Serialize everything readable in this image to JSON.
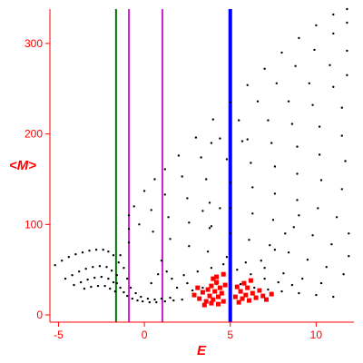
{
  "chart_data": {
    "type": "scatter",
    "title": "",
    "xlabel": "E",
    "ylabel": "<M>",
    "xlim": [
      -5.5,
      12.2
    ],
    "ylim": [
      -8,
      338
    ],
    "x_ticks": [
      -5,
      0,
      5,
      10
    ],
    "x_tick_labels": [
      "-5",
      "0",
      "5",
      "10"
    ],
    "y_ticks": [
      0,
      100,
      200,
      300
    ],
    "y_tick_labels": [
      "0",
      "100",
      "200",
      "300"
    ],
    "grid": false,
    "legend": "none",
    "colors": {
      "axis": "#ff0000",
      "points": "#000000",
      "highlight": "#ff0000",
      "line_green": "#007700",
      "line_magenta": "#cc22cc",
      "line_blue": "#0000ff"
    },
    "vertical_lines": [
      {
        "x": -1.65,
        "color": "#007700",
        "width": 2
      },
      {
        "x": -0.9,
        "color": "#cc22cc",
        "width": 2
      },
      {
        "x": 1.05,
        "color": "#cc22cc",
        "width": 2
      },
      {
        "x": 5.0,
        "color": "#0000ff",
        "width": 4
      }
    ],
    "series": [
      {
        "values": [
          {
            "x": -5.2,
            "y": 55
          },
          {
            "x": -4.8,
            "y": 60
          },
          {
            "x": -4.4,
            "y": 64
          },
          {
            "x": -4.0,
            "y": 67
          },
          {
            "x": -3.6,
            "y": 69
          },
          {
            "x": -3.2,
            "y": 71
          },
          {
            "x": -2.8,
            "y": 72
          },
          {
            "x": -2.4,
            "y": 72
          },
          {
            "x": -2.1,
            "y": 70
          },
          {
            "x": -1.8,
            "y": 66
          },
          {
            "x": -4.6,
            "y": 40
          },
          {
            "x": -4.2,
            "y": 44
          },
          {
            "x": -3.8,
            "y": 48
          },
          {
            "x": -3.4,
            "y": 51
          },
          {
            "x": -3.0,
            "y": 53
          },
          {
            "x": -2.6,
            "y": 54
          },
          {
            "x": -2.2,
            "y": 53
          },
          {
            "x": -1.9,
            "y": 49
          },
          {
            "x": -4.1,
            "y": 33
          },
          {
            "x": -3.7,
            "y": 36
          },
          {
            "x": -3.3,
            "y": 39
          },
          {
            "x": -2.9,
            "y": 41
          },
          {
            "x": -2.5,
            "y": 42
          },
          {
            "x": -2.1,
            "y": 40
          },
          {
            "x": -1.8,
            "y": 36
          },
          {
            "x": -3.5,
            "y": 29
          },
          {
            "x": -3.1,
            "y": 31
          },
          {
            "x": -2.7,
            "y": 32
          },
          {
            "x": -2.3,
            "y": 32
          },
          {
            "x": -2.0,
            "y": 29
          },
          {
            "x": -1.7,
            "y": 26
          },
          {
            "x": -1.6,
            "y": 35
          },
          {
            "x": -1.4,
            "y": 30
          },
          {
            "x": -1.2,
            "y": 25
          },
          {
            "x": -1.0,
            "y": 21
          },
          {
            "x": -0.7,
            "y": 18
          },
          {
            "x": -0.4,
            "y": 16
          },
          {
            "x": -0.1,
            "y": 15
          },
          {
            "x": 0.3,
            "y": 14
          },
          {
            "x": 0.7,
            "y": 14
          },
          {
            "x": 1.2,
            "y": 15
          },
          {
            "x": 1.7,
            "y": 16
          },
          {
            "x": 2.2,
            "y": 17
          },
          {
            "x": -1.6,
            "y": 44
          },
          {
            "x": -1.5,
            "y": 58
          },
          {
            "x": -1.4,
            "y": 66
          },
          {
            "x": -1.2,
            "y": 52
          },
          {
            "x": -1.0,
            "y": 40
          },
          {
            "x": -0.8,
            "y": 30
          },
          {
            "x": -0.5,
            "y": 24
          },
          {
            "x": -0.2,
            "y": 20
          },
          {
            "x": 0.2,
            "y": 18
          },
          {
            "x": 0.6,
            "y": 17
          },
          {
            "x": 1.0,
            "y": 18
          },
          {
            "x": 1.5,
            "y": 19
          },
          {
            "x": -0.9,
            "y": 80
          },
          {
            "x": -0.9,
            "y": 95
          },
          {
            "x": -0.9,
            "y": 110
          },
          {
            "x": -0.6,
            "y": 120
          },
          {
            "x": 0.0,
            "y": 137
          },
          {
            "x": 0.6,
            "y": 150
          },
          {
            "x": 1.2,
            "y": 161
          },
          {
            "x": 2.0,
            "y": 176
          },
          {
            "x": 3.0,
            "y": 196
          },
          {
            "x": 4.0,
            "y": 216
          },
          {
            "x": 5.0,
            "y": 235
          },
          {
            "x": 6.0,
            "y": 254
          },
          {
            "x": 7.0,
            "y": 272
          },
          {
            "x": 8.0,
            "y": 290
          },
          {
            "x": 9.0,
            "y": 306
          },
          {
            "x": 10.0,
            "y": 320
          },
          {
            "x": 11.0,
            "y": 332
          },
          {
            "x": 11.8,
            "y": 338
          },
          {
            "x": -0.3,
            "y": 100
          },
          {
            "x": 0.4,
            "y": 116
          },
          {
            "x": 1.2,
            "y": 133
          },
          {
            "x": 2.2,
            "y": 153
          },
          {
            "x": 3.3,
            "y": 174
          },
          {
            "x": 4.4,
            "y": 195
          },
          {
            "x": 5.5,
            "y": 215
          },
          {
            "x": 6.6,
            "y": 236
          },
          {
            "x": 7.7,
            "y": 256
          },
          {
            "x": 8.8,
            "y": 275
          },
          {
            "x": 9.9,
            "y": 293
          },
          {
            "x": 11.0,
            "y": 311
          },
          {
            "x": 11.8,
            "y": 323
          },
          {
            "x": 0.5,
            "y": 92
          },
          {
            "x": 1.4,
            "y": 108
          },
          {
            "x": 2.5,
            "y": 129
          },
          {
            "x": 3.6,
            "y": 150
          },
          {
            "x": 4.8,
            "y": 172
          },
          {
            "x": 6.0,
            "y": 194
          },
          {
            "x": 7.2,
            "y": 215
          },
          {
            "x": 8.4,
            "y": 236
          },
          {
            "x": 9.6,
            "y": 256
          },
          {
            "x": 10.8,
            "y": 276
          },
          {
            "x": 11.8,
            "y": 292
          },
          {
            "x": 1.5,
            "y": 84
          },
          {
            "x": 2.6,
            "y": 102
          },
          {
            "x": 3.8,
            "y": 124
          },
          {
            "x": 5.0,
            "y": 146
          },
          {
            "x": 6.2,
            "y": 168
          },
          {
            "x": 7.4,
            "y": 190
          },
          {
            "x": 8.6,
            "y": 211
          },
          {
            "x": 9.8,
            "y": 232
          },
          {
            "x": 11.0,
            "y": 252
          },
          {
            "x": 11.8,
            "y": 265
          },
          {
            "x": 2.6,
            "y": 76
          },
          {
            "x": 3.8,
            "y": 96
          },
          {
            "x": 5.0,
            "y": 118
          },
          {
            "x": 6.3,
            "y": 141
          },
          {
            "x": 7.6,
            "y": 164
          },
          {
            "x": 8.9,
            "y": 186
          },
          {
            "x": 10.2,
            "y": 208
          },
          {
            "x": 11.5,
            "y": 229
          },
          {
            "x": 3.7,
            "y": 70
          },
          {
            "x": 5.0,
            "y": 90
          },
          {
            "x": 6.3,
            "y": 112
          },
          {
            "x": 7.6,
            "y": 134
          },
          {
            "x": 8.9,
            "y": 156
          },
          {
            "x": 10.2,
            "y": 177
          },
          {
            "x": 11.5,
            "y": 198
          },
          {
            "x": 4.8,
            "y": 64
          },
          {
            "x": 6.1,
            "y": 83
          },
          {
            "x": 7.5,
            "y": 105
          },
          {
            "x": 8.9,
            "y": 127
          },
          {
            "x": 10.3,
            "y": 149
          },
          {
            "x": 11.7,
            "y": 170
          },
          {
            "x": 5.9,
            "y": 58
          },
          {
            "x": 7.3,
            "y": 77
          },
          {
            "x": 8.7,
            "y": 97
          },
          {
            "x": 10.1,
            "y": 118
          },
          {
            "x": 11.5,
            "y": 139
          },
          {
            "x": 7.0,
            "y": 52
          },
          {
            "x": 8.4,
            "y": 69
          },
          {
            "x": 9.8,
            "y": 88
          },
          {
            "x": 11.2,
            "y": 108
          },
          {
            "x": 8.1,
            "y": 46
          },
          {
            "x": 9.5,
            "y": 61
          },
          {
            "x": 10.9,
            "y": 78
          },
          {
            "x": 11.9,
            "y": 90
          },
          {
            "x": 9.2,
            "y": 40
          },
          {
            "x": 10.6,
            "y": 53
          },
          {
            "x": 11.9,
            "y": 65
          },
          {
            "x": 10.3,
            "y": 35
          },
          {
            "x": 11.6,
            "y": 45
          },
          {
            "x": 1.6,
            "y": 40
          },
          {
            "x": 2.3,
            "y": 44
          },
          {
            "x": 3.1,
            "y": 48
          },
          {
            "x": 3.9,
            "y": 52
          },
          {
            "x": 4.6,
            "y": 56
          },
          {
            "x": 5.4,
            "y": 50
          },
          {
            "x": 6.2,
            "y": 45
          },
          {
            "x": 7.0,
            "y": 40
          },
          {
            "x": 7.8,
            "y": 36
          },
          {
            "x": 8.6,
            "y": 33
          },
          {
            "x": 2.8,
            "y": 27
          },
          {
            "x": 3.4,
            "y": 30
          },
          {
            "x": 4.2,
            "y": 34
          },
          {
            "x": 5.6,
            "y": 34
          },
          {
            "x": 6.4,
            "y": 30
          },
          {
            "x": 7.2,
            "y": 28
          },
          {
            "x": 8.0,
            "y": 26
          },
          {
            "x": 9.0,
            "y": 24
          },
          {
            "x": 10.0,
            "y": 22
          },
          {
            "x": 11.0,
            "y": 20
          },
          {
            "x": 1.0,
            "y": 60
          },
          {
            "x": 1.3,
            "y": 48
          },
          {
            "x": 0.8,
            "y": 45
          },
          {
            "x": 0.4,
            "y": 35
          },
          {
            "x": 1.9,
            "y": 30
          },
          {
            "x": 2.5,
            "y": 35
          },
          {
            "x": 6.8,
            "y": 60
          },
          {
            "x": 7.6,
            "y": 72
          },
          {
            "x": 8.2,
            "y": 90
          },
          {
            "x": 9.0,
            "y": 110
          },
          {
            "x": 3.4,
            "y": 115
          },
          {
            "x": 3.9,
            "y": 98
          },
          {
            "x": 4.4,
            "y": 118
          },
          {
            "x": 5.7,
            "y": 192
          },
          {
            "x": 3.9,
            "y": 190
          }
        ]
      },
      {
        "values": [
          {
            "x": 2.9,
            "y": 22
          },
          {
            "x": 3.2,
            "y": 18
          },
          {
            "x": 3.4,
            "y": 25
          },
          {
            "x": 3.6,
            "y": 15
          },
          {
            "x": 3.7,
            "y": 28
          },
          {
            "x": 3.8,
            "y": 21
          },
          {
            "x": 3.9,
            "y": 32
          },
          {
            "x": 4.0,
            "y": 17
          },
          {
            "x": 4.1,
            "y": 26
          },
          {
            "x": 4.2,
            "y": 36
          },
          {
            "x": 4.3,
            "y": 20
          },
          {
            "x": 4.4,
            "y": 30
          },
          {
            "x": 4.5,
            "y": 24
          },
          {
            "x": 4.6,
            "y": 15
          },
          {
            "x": 4.7,
            "y": 33
          },
          {
            "x": 3.5,
            "y": 11
          },
          {
            "x": 3.9,
            "y": 13
          },
          {
            "x": 4.3,
            "y": 12
          },
          {
            "x": 4.6,
            "y": 45
          },
          {
            "x": 4.2,
            "y": 42
          },
          {
            "x": 5.3,
            "y": 20
          },
          {
            "x": 5.5,
            "y": 14
          },
          {
            "x": 5.6,
            "y": 26
          },
          {
            "x": 5.7,
            "y": 18
          },
          {
            "x": 5.9,
            "y": 22
          },
          {
            "x": 6.0,
            "y": 30
          },
          {
            "x": 6.1,
            "y": 16
          },
          {
            "x": 6.3,
            "y": 24
          },
          {
            "x": 6.5,
            "y": 19
          },
          {
            "x": 6.7,
            "y": 27
          },
          {
            "x": 6.9,
            "y": 21
          },
          {
            "x": 7.1,
            "y": 17
          },
          {
            "x": 7.4,
            "y": 23
          },
          {
            "x": 5.8,
            "y": 35
          },
          {
            "x": 6.2,
            "y": 38
          },
          {
            "x": 5.4,
            "y": 31
          },
          {
            "x": 3.1,
            "y": 30
          },
          {
            "x": 4.0,
            "y": 40
          }
        ]
      }
    ]
  }
}
